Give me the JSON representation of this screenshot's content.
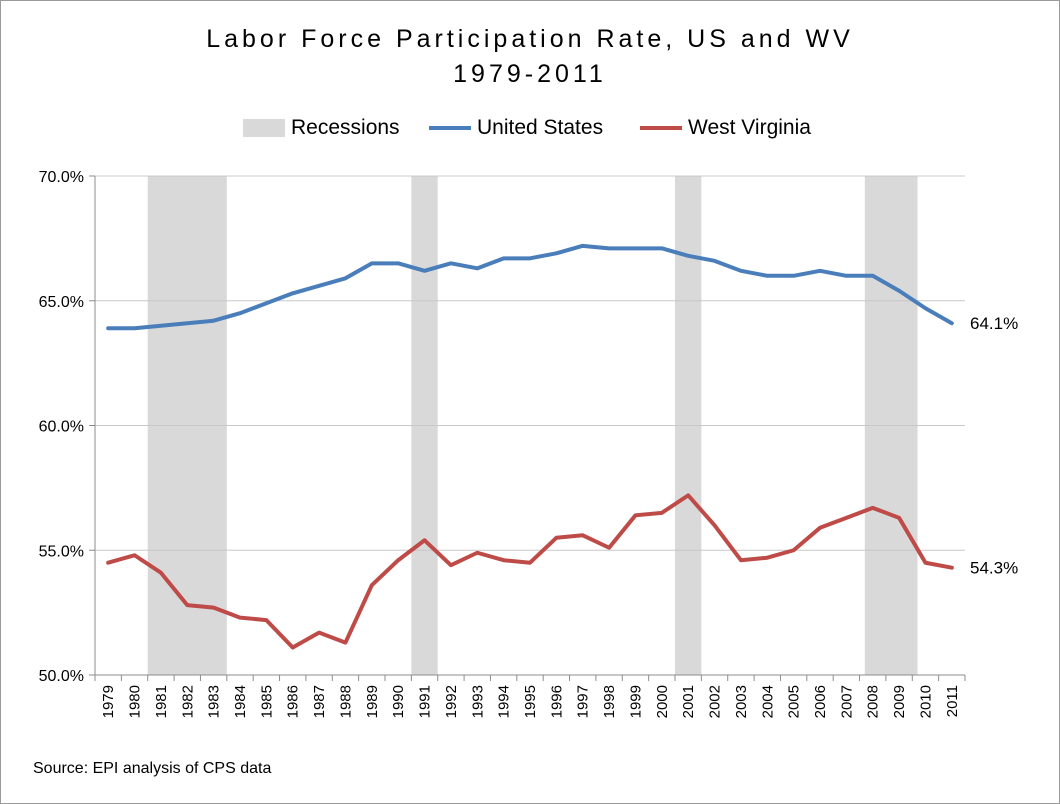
{
  "chart_data": {
    "type": "line",
    "title_line1": "Labor Force Participation Rate, US and WV",
    "title_line2": "1979-2011",
    "source": "Source: EPI analysis of CPS data",
    "legend": [
      "Recessions",
      "United States",
      "West Virginia"
    ],
    "legend_placement": "top",
    "categories": [
      "1979",
      "1980",
      "1981",
      "1982",
      "1983",
      "1984",
      "1985",
      "1986",
      "1987",
      "1988",
      "1989",
      "1990",
      "1991",
      "1992",
      "1993",
      "1994",
      "1995",
      "1996",
      "1997",
      "1998",
      "1999",
      "2000",
      "2001",
      "2002",
      "2003",
      "2004",
      "2005",
      "2006",
      "2007",
      "2008",
      "2009",
      "2010",
      "2011"
    ],
    "ylim": [
      50,
      70
    ],
    "yticks": [
      50,
      55,
      60,
      65,
      70
    ],
    "ytick_labels": [
      "50.0%",
      "55.0%",
      "60.0%",
      "65.0%",
      "70.0%"
    ],
    "grid": "horizontal",
    "series": [
      {
        "name": "United States",
        "color": "#4a7ebb",
        "values": [
          63.9,
          63.9,
          64.0,
          64.1,
          64.2,
          64.5,
          64.9,
          65.3,
          65.6,
          65.9,
          66.5,
          66.5,
          66.2,
          66.5,
          66.3,
          66.7,
          66.7,
          66.9,
          67.2,
          67.1,
          67.1,
          67.1,
          66.8,
          66.6,
          66.2,
          66.0,
          66.0,
          66.2,
          66.0,
          66.0,
          65.4,
          64.7,
          64.1
        ],
        "end_label": "64.1%"
      },
      {
        "name": "West Virginia",
        "color": "#be4b48",
        "values": [
          54.5,
          54.8,
          54.1,
          52.8,
          52.7,
          52.3,
          52.2,
          51.1,
          51.7,
          51.3,
          53.6,
          54.6,
          55.4,
          54.4,
          54.9,
          54.6,
          54.5,
          55.5,
          55.6,
          55.1,
          56.4,
          56.5,
          57.2,
          56.0,
          54.6,
          54.7,
          55.0,
          55.9,
          56.3,
          56.7,
          56.3,
          54.5,
          54.3
        ],
        "end_label": "54.3%"
      }
    ],
    "recessions": [
      {
        "start_year": 1980.5,
        "end_year": 1983.5
      },
      {
        "start_year": 1990.5,
        "end_year": 1991.5
      },
      {
        "start_year": 2000.5,
        "end_year": 2001.5
      },
      {
        "start_year": 2007.7,
        "end_year": 2009.7
      }
    ],
    "recession_color": "#d9d9d9"
  }
}
